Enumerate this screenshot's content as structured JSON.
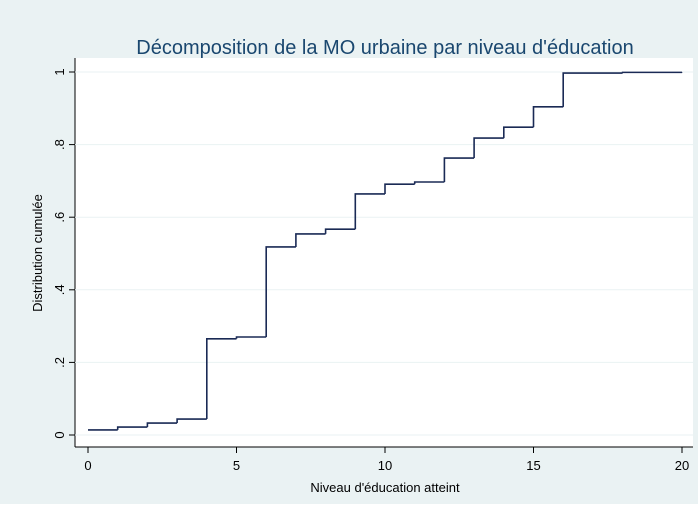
{
  "chart_data": {
    "type": "step",
    "title": "Décomposition de la MO urbaine par niveau d'éducation",
    "xlabel": "Niveau d'éducation atteint",
    "ylabel": "Distribution cumulée",
    "x": [
      0,
      1,
      2,
      3,
      4,
      5,
      6,
      7,
      8,
      9,
      10,
      11,
      12,
      13,
      14,
      15,
      16,
      18,
      20
    ],
    "values": [
      0.014,
      0.022,
      0.033,
      0.044,
      0.265,
      0.27,
      0.518,
      0.554,
      0.567,
      0.664,
      0.691,
      0.697,
      0.763,
      0.818,
      0.848,
      0.904,
      0.997,
      0.999,
      1
    ],
    "color": "#1a2a55",
    "xlim": [
      0,
      20
    ],
    "xticks": [
      0,
      5,
      10,
      15,
      20
    ],
    "ylim": [
      0,
      1
    ],
    "yticks": [
      0,
      {
        "value": 0.2,
        "label": ".2"
      },
      {
        "value": 0.4,
        "label": ".4"
      },
      {
        "value": 0.6,
        "label": ".6"
      },
      {
        "value": 0.8,
        "label": ".8"
      },
      1
    ],
    "grid": true
  }
}
